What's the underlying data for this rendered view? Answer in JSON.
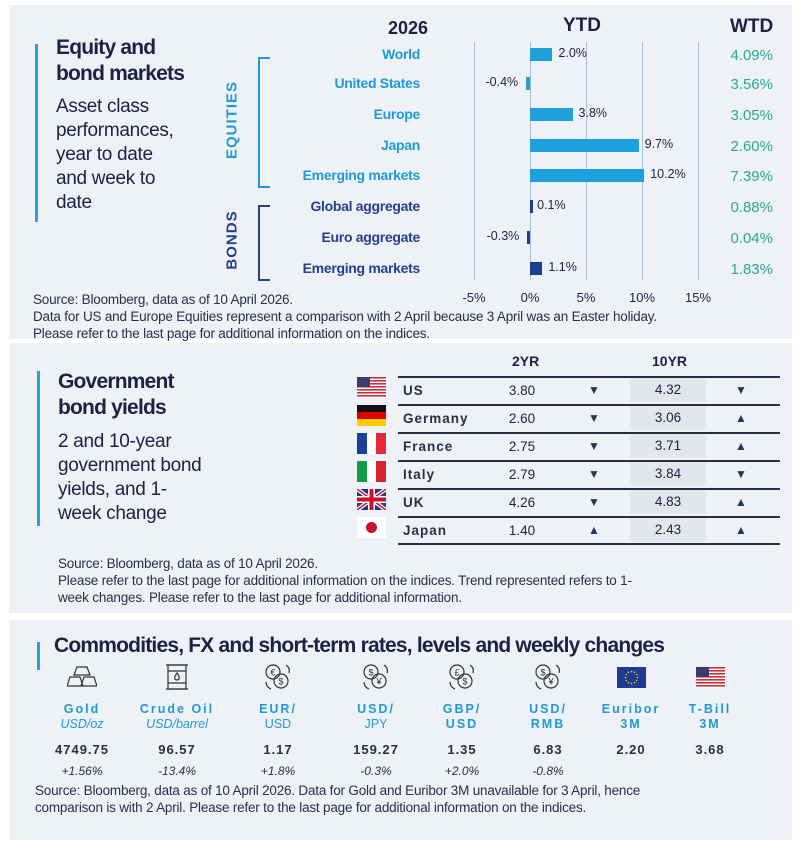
{
  "equity": {
    "title": [
      "Equity and",
      "bond markets"
    ],
    "subtitle": [
      "Asset class",
      "performances,",
      "year to date",
      "and week to",
      "date"
    ],
    "col_year": "2026",
    "col_ytd": "YTD",
    "col_wtd": "WTD",
    "group_equities": "EQUITIES",
    "group_bonds": "BONDS",
    "notes": [
      "Source: Bloomberg, data as of 10 April 2026.",
      "Data for US and Europe Equities represent a comparison with 2 April because 3 April was an Easter holiday.",
      "Please refer to the last page for additional information on the indices."
    ]
  },
  "chart_data": {
    "type": "bar",
    "orientation": "horizontal",
    "title": "YTD",
    "categories": [
      "World",
      "United States",
      "Europe",
      "Japan",
      "Emerging  markets",
      "Global aggregate",
      "Euro aggregate",
      "Emerging  markets"
    ],
    "groups": [
      "EQUITIES",
      "EQUITIES",
      "EQUITIES",
      "EQUITIES",
      "EQUITIES",
      "BONDS",
      "BONDS",
      "BONDS"
    ],
    "values": [
      2.0,
      -0.4,
      3.8,
      9.7,
      10.2,
      0.1,
      -0.3,
      1.1
    ],
    "value_labels": [
      "2.0%",
      "-0.4%",
      "3.8%",
      "9.7%",
      "10.2%",
      "0.1%",
      "-0.3%",
      "1.1%"
    ],
    "wtd": [
      "4.09%",
      "3.56%",
      "3.05%",
      "2.60%",
      "7.39%",
      "0.88%",
      "0.04%",
      "1.83%"
    ],
    "xlim": [
      -5,
      15
    ],
    "xticks": [
      "-5%",
      "0%",
      "5%",
      "10%",
      "15%"
    ],
    "grid": true,
    "colors": {
      "equities": "#1ea0dc",
      "bonds": "#1b3f8f",
      "wtd": "#2aa89a"
    }
  },
  "bonds": {
    "title": [
      "Government",
      "bond yields"
    ],
    "subtitle": [
      "2 and 10-year",
      "government bond",
      "yields, and 1-",
      "week change"
    ],
    "col_2yr": "2YR",
    "col_10yr": "10YR",
    "rows": [
      {
        "country": "US",
        "flag": "us-flag",
        "y2": "3.80",
        "t2": "down",
        "y10": "4.32",
        "t10": "down"
      },
      {
        "country": "Germany",
        "flag": "germany-flag",
        "y2": "2.60",
        "t2": "down",
        "y10": "3.06",
        "t10": "up"
      },
      {
        "country": "France",
        "flag": "france-flag",
        "y2": "2.75",
        "t2": "down",
        "y10": "3.71",
        "t10": "up"
      },
      {
        "country": "Italy",
        "flag": "italy-flag",
        "y2": "2.79",
        "t2": "down",
        "y10": "3.84",
        "t10": "down"
      },
      {
        "country": "UK",
        "flag": "uk-flag",
        "y2": "4.26",
        "t2": "down",
        "y10": "4.83",
        "t10": "up"
      },
      {
        "country": "Japan",
        "flag": "japan-flag",
        "y2": "1.40",
        "t2": "up",
        "y10": "2.43",
        "t10": "up"
      }
    ],
    "notes": [
      "Source: Bloomberg, data as of 10 April 2026.",
      "Please refer to the last page for additional information on the indices. Trend represented refers to 1-",
      "week changes. Please refer to the last page for additional information."
    ]
  },
  "commodities": {
    "title": "Commodities, FX and short-term rates, levels and weekly changes",
    "items": [
      {
        "icon": "gold-bars-icon",
        "label": "Gold",
        "unit": "USD/oz",
        "value": "4749.75",
        "change": "+1.56%"
      },
      {
        "icon": "oil-barrel-icon",
        "label": "Crude Oil",
        "unit": "USD/barrel",
        "value": "96.57",
        "change": "-13.4%"
      },
      {
        "icon": "euro-dollar-exchange-icon",
        "label": "EUR/",
        "unit": "USD",
        "value": "1.17",
        "change": "+1.8%"
      },
      {
        "icon": "dollar-yen-exchange-icon",
        "label": "USD/",
        "unit": "JPY",
        "value": "159.27",
        "change": "-0.3%"
      },
      {
        "icon": "pound-dollar-exchange-icon",
        "label": "GBP/",
        "unit": "USD",
        "value": "1.35",
        "change": "+2.0%"
      },
      {
        "icon": "dollar-yuan-exchange-icon",
        "label": "USD/",
        "unit": "RMB",
        "value": "6.83",
        "change": "-0.8%"
      },
      {
        "icon": "eu-flag",
        "label": "Euribor",
        "unit": "3M",
        "value": "2.20",
        "change": ""
      },
      {
        "icon": "us-flag",
        "label": "T-Bill",
        "unit": "3M",
        "value": "3.68",
        "change": ""
      }
    ],
    "notes": [
      "Source: Bloomberg, data as of 10 April 2026. Data for Gold and Euribor 3M unavailable for 3 April, hence",
      "comparison is with 2 April. Please refer to the last page for additional information on the indices."
    ]
  },
  "accent": "#2aa0dc"
}
